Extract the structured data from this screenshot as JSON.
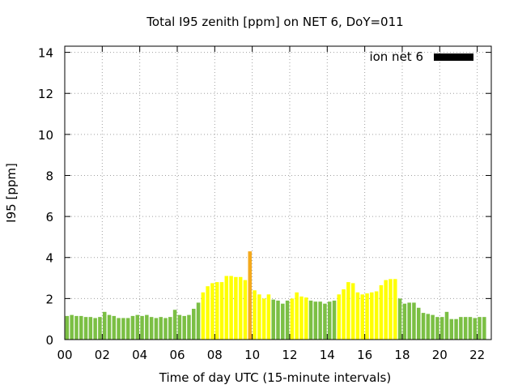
{
  "chart_data": {
    "type": "bar",
    "title": "Total I95 zenith [ppm] on NET 6, DoY=011",
    "xlabel": "Time of day UTC (15-minute intervals)",
    "ylabel": "I95 [ppm]",
    "ylim": [
      0,
      14.3
    ],
    "xlim": [
      0,
      22.75
    ],
    "grid": true,
    "legend": {
      "label": "ion net 6",
      "color": "#000000",
      "placement": "top-right"
    },
    "y_ticks": [
      {
        "value": 0,
        "label": "0"
      },
      {
        "value": 2,
        "label": "2"
      },
      {
        "value": 4,
        "label": "4"
      },
      {
        "value": 6,
        "label": "6"
      },
      {
        "value": 8,
        "label": "8"
      },
      {
        "value": 10,
        "label": "10"
      },
      {
        "value": 12,
        "label": "12"
      },
      {
        "value": 14,
        "label": "14"
      }
    ],
    "x_ticks": [
      {
        "value": 0,
        "label": "00"
      },
      {
        "value": 2,
        "label": "02"
      },
      {
        "value": 4,
        "label": "04"
      },
      {
        "value": 6,
        "label": "06"
      },
      {
        "value": 8,
        "label": "08"
      },
      {
        "value": 10,
        "label": "10"
      },
      {
        "value": 12,
        "label": "12"
      },
      {
        "value": 14,
        "label": "14"
      },
      {
        "value": 16,
        "label": "16"
      },
      {
        "value": 18,
        "label": "18"
      },
      {
        "value": 20,
        "label": "20"
      },
      {
        "value": 22,
        "label": "22"
      }
    ],
    "interval_hours": 0.25,
    "level_colors": {
      "low": "#7bbf44",
      "moderate": "#ffff00",
      "elevated": "#f4a91d"
    },
    "values": [
      1.15,
      1.2,
      1.15,
      1.15,
      1.1,
      1.1,
      1.05,
      1.1,
      1.35,
      1.2,
      1.15,
      1.05,
      1.05,
      1.05,
      1.15,
      1.2,
      1.15,
      1.2,
      1.1,
      1.05,
      1.1,
      1.05,
      1.1,
      1.45,
      1.2,
      1.15,
      1.2,
      1.5,
      1.8,
      2.3,
      2.6,
      2.75,
      2.8,
      2.8,
      3.1,
      3.1,
      3.05,
      3.05,
      2.9,
      4.3,
      2.4,
      2.2,
      2.0,
      2.2,
      1.95,
      1.9,
      1.75,
      1.9,
      2.0,
      2.3,
      2.1,
      2.05,
      1.9,
      1.85,
      1.85,
      1.75,
      1.85,
      1.9,
      2.2,
      2.45,
      2.8,
      2.75,
      2.3,
      2.2,
      2.25,
      2.3,
      2.35,
      2.65,
      2.9,
      2.95,
      2.95,
      2.0,
      1.75,
      1.8,
      1.8,
      1.55,
      1.3,
      1.25,
      1.2,
      1.1,
      1.1,
      1.35,
      1.0,
      1.0,
      1.1,
      1.1,
      1.1,
      1.05,
      1.1,
      1.1
    ],
    "levels": [
      "low",
      "low",
      "low",
      "low",
      "low",
      "low",
      "low",
      "low",
      "low",
      "low",
      "low",
      "low",
      "low",
      "low",
      "low",
      "low",
      "low",
      "low",
      "low",
      "low",
      "low",
      "low",
      "low",
      "low",
      "low",
      "low",
      "low",
      "low",
      "low",
      "moderate",
      "moderate",
      "moderate",
      "moderate",
      "moderate",
      "moderate",
      "moderate",
      "moderate",
      "moderate",
      "moderate",
      "elevated",
      "moderate",
      "moderate",
      "moderate",
      "moderate",
      "low",
      "low",
      "low",
      "low",
      "moderate",
      "moderate",
      "moderate",
      "moderate",
      "low",
      "low",
      "low",
      "low",
      "low",
      "low",
      "moderate",
      "moderate",
      "moderate",
      "moderate",
      "moderate",
      "moderate",
      "moderate",
      "moderate",
      "moderate",
      "moderate",
      "moderate",
      "moderate",
      "moderate",
      "low",
      "low",
      "low",
      "low",
      "low",
      "low",
      "low",
      "low",
      "low",
      "low",
      "low",
      "low",
      "low",
      "low",
      "low",
      "low",
      "low",
      "low",
      "low"
    ]
  }
}
